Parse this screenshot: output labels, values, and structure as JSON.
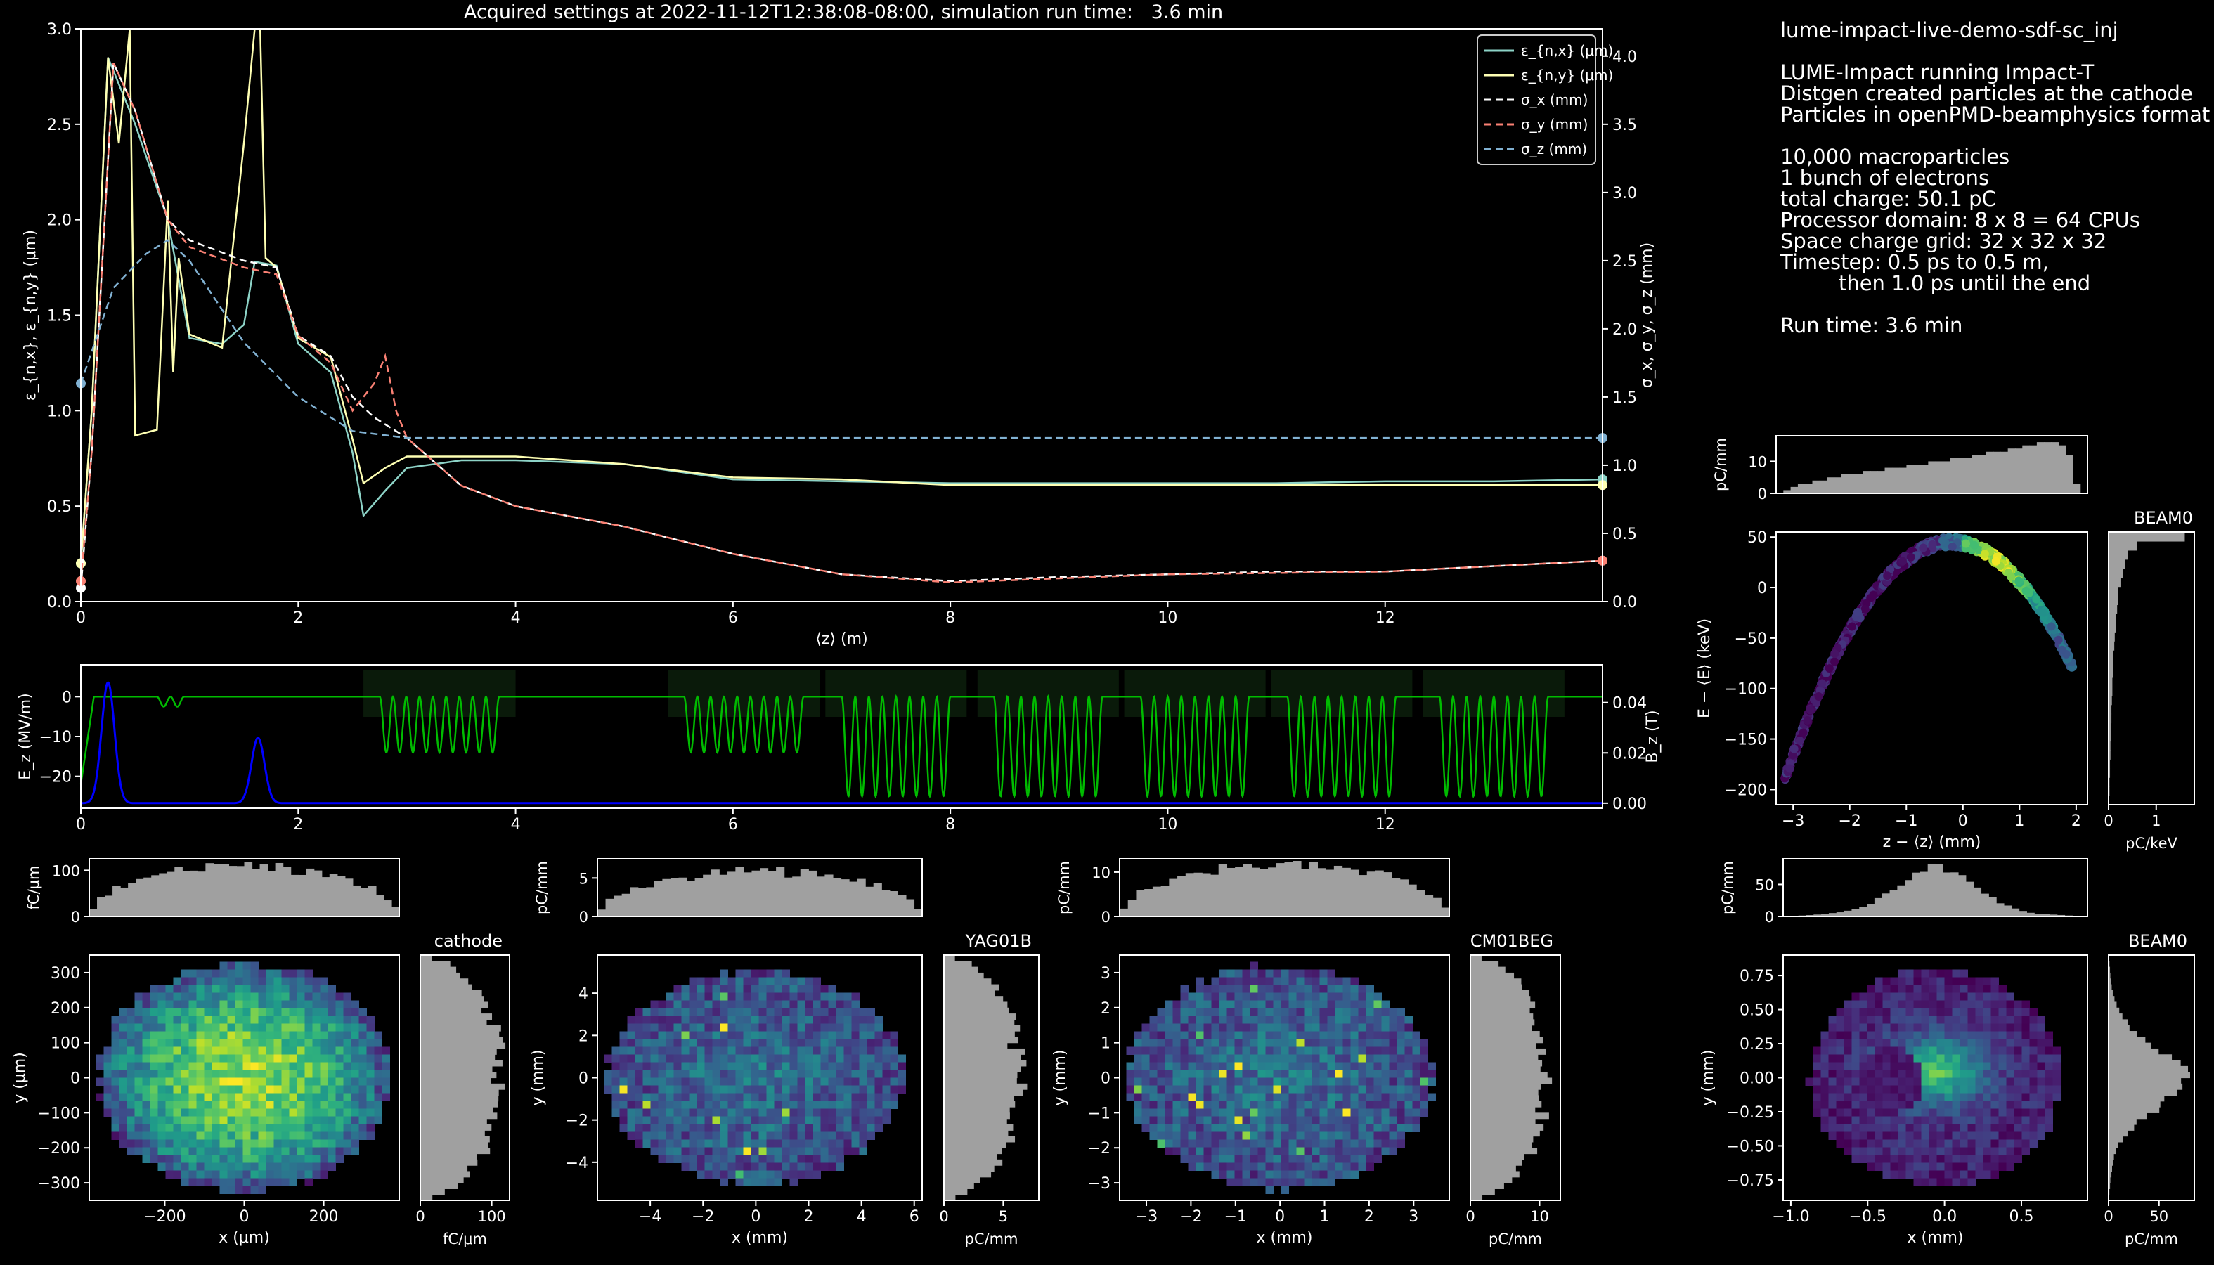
{
  "title": "Acquired settings at 2022-11-12T12:38:08-08:00, simulation run time:   3.6 min",
  "info": {
    "lines": [
      "lume-impact-live-demo-sdf-sc_inj",
      "",
      "LUME-Impact running Impact-T",
      "Distgen created particles at the cathode",
      "Particles in openPMD-beamphysics format",
      "",
      "10,000 macroparticles",
      "1 bunch of electrons",
      "total charge: 50.1 pC",
      "Processor domain: 8 x 8 = 64 CPUs",
      "Space charge grid: 32 x 32 x 32",
      "Timestep: 0.5 ps to 0.5 m,",
      "         then 1.0 ps until the end",
      "",
      "Run time: 3.6 min"
    ]
  },
  "colors": {
    "background": "#000000",
    "enx": "#8dd3c7",
    "eny": "#feffb3",
    "sigx": "#ffffff",
    "sigy": "#fa8174",
    "sigz": "#81b1d2",
    "ez": "#0000ff",
    "bz": "#00bb00",
    "hist": "#a0a0a0"
  },
  "chart_data": [
    {
      "id": "emittance",
      "type": "line",
      "xlabel": "⟨z⟩ (m)",
      "ylabel": "ε_{n,x}, ε_{n,y} (μm)",
      "ylabel2": "σ_x, σ_y, σ_z (mm)",
      "xlim": [
        0,
        14
      ],
      "ylim": [
        0,
        3
      ],
      "ylim2": [
        0,
        4.2
      ],
      "xticks": [
        "0",
        "2",
        "4",
        "6",
        "8",
        "10",
        "12"
      ],
      "yticks": [
        "0.0",
        "0.5",
        "1.0",
        "1.5",
        "2.0",
        "2.5",
        "3.0"
      ],
      "yticks2": [
        "0.0",
        "0.5",
        "1.0",
        "1.5",
        "2.0",
        "2.5",
        "3.0",
        "3.5",
        "4.0"
      ],
      "legend_position": "top-right",
      "series": [
        {
          "name": "ε_{n,x} (μm)",
          "axis": "left",
          "x": [
            0,
            0.1,
            0.25,
            0.5,
            0.8,
            1.0,
            1.3,
            1.5,
            1.6,
            1.8,
            2.0,
            2.3,
            2.5,
            2.6,
            2.8,
            3.0,
            3.5,
            4.0,
            5.0,
            6.0,
            7.0,
            8.0,
            9.0,
            10.0,
            11.0,
            12.0,
            13.0,
            14.0
          ],
          "y": [
            0.2,
            1.0,
            2.85,
            2.5,
            2.0,
            1.38,
            1.35,
            1.45,
            1.78,
            1.76,
            1.35,
            1.2,
            0.78,
            0.45,
            0.58,
            0.7,
            0.74,
            0.74,
            0.72,
            0.64,
            0.63,
            0.62,
            0.62,
            0.62,
            0.62,
            0.63,
            0.63,
            0.64
          ]
        },
        {
          "name": "ε_{n,y} (μm)",
          "axis": "left",
          "x": [
            0,
            0.1,
            0.25,
            0.35,
            0.45,
            0.5,
            0.7,
            0.8,
            0.85,
            0.9,
            1.0,
            1.3,
            1.5,
            1.6,
            1.65,
            1.7,
            1.8,
            2.0,
            2.3,
            2.5,
            2.6,
            2.8,
            3.0,
            3.5,
            4.0,
            5.0,
            6.0,
            7.0,
            8.0,
            9.0,
            10.0,
            11.0,
            12.0,
            13.0,
            14.0
          ],
          "y": [
            0.2,
            1.0,
            2.85,
            2.4,
            3.0,
            0.87,
            0.9,
            2.1,
            1.2,
            1.8,
            1.4,
            1.33,
            2.4,
            3.0,
            3.0,
            1.8,
            1.75,
            1.38,
            1.28,
            0.85,
            0.62,
            0.7,
            0.76,
            0.76,
            0.76,
            0.72,
            0.65,
            0.64,
            0.61,
            0.61,
            0.61,
            0.61,
            0.61,
            0.61,
            0.61
          ]
        },
        {
          "name": "σ_x (mm)",
          "axis": "right",
          "dashed": true,
          "x": [
            0,
            0.1,
            0.3,
            0.5,
            0.8,
            1.0,
            1.5,
            1.8,
            2.0,
            2.3,
            2.5,
            2.7,
            3.0,
            3.5,
            4.0,
            5.0,
            6.0,
            7.0,
            8.0,
            9.0,
            10.0,
            11.0,
            12.0,
            13.0,
            14.0
          ],
          "y": [
            0.1,
            1.1,
            3.95,
            3.6,
            2.8,
            2.65,
            2.5,
            2.45,
            1.95,
            1.8,
            1.5,
            1.35,
            1.2,
            0.85,
            0.7,
            0.55,
            0.35,
            0.2,
            0.15,
            0.18,
            0.2,
            0.22,
            0.22,
            0.26,
            0.3
          ]
        },
        {
          "name": "σ_y (mm)",
          "axis": "right",
          "dashed": true,
          "x": [
            0,
            0.1,
            0.3,
            0.5,
            0.8,
            1.0,
            1.5,
            1.8,
            2.0,
            2.3,
            2.5,
            2.7,
            2.8,
            2.9,
            3.0,
            3.5,
            4.0,
            5.0,
            6.0,
            7.0,
            8.0,
            9.0,
            10.0,
            11.0,
            12.0,
            13.0,
            14.0
          ],
          "y": [
            0.15,
            1.1,
            3.95,
            3.6,
            2.8,
            2.6,
            2.45,
            2.4,
            1.95,
            1.75,
            1.4,
            1.6,
            1.8,
            1.4,
            1.2,
            0.85,
            0.7,
            0.55,
            0.35,
            0.2,
            0.14,
            0.17,
            0.2,
            0.21,
            0.22,
            0.26,
            0.3
          ]
        },
        {
          "name": "σ_z (mm)",
          "axis": "right",
          "dashed": true,
          "x": [
            0,
            0.3,
            0.6,
            0.8,
            1.0,
            1.5,
            2.0,
            2.5,
            3.0,
            4.0,
            6.0,
            8.0,
            10.0,
            12.0,
            14.0
          ],
          "y": [
            1.6,
            2.3,
            2.55,
            2.65,
            2.5,
            1.9,
            1.5,
            1.25,
            1.2,
            1.2,
            1.2,
            1.2,
            1.2,
            1.2,
            1.2
          ]
        }
      ]
    },
    {
      "id": "fields",
      "type": "line",
      "ylabel": "E_z (MV/m)",
      "ylabel2": "B_z (T)",
      "xlim": [
        0,
        14
      ],
      "ylim": [
        -28,
        8
      ],
      "ylim2": [
        -0.002,
        0.055
      ],
      "xticks": [
        "0",
        "2",
        "4",
        "6",
        "8",
        "10",
        "12"
      ],
      "yticks": [
        "0",
        "−10",
        "−20"
      ],
      "yticks2": [
        "0.00",
        "0.02",
        "0.04"
      ],
      "ez_cavities": [
        {
          "start": 2.75,
          "end": 3.85,
          "amplitude": 14,
          "periods": 9
        },
        {
          "start": 5.55,
          "end": 6.65,
          "amplitude": 14,
          "periods": 9
        },
        {
          "start": 7.0,
          "end": 8.0,
          "amplitude": 25,
          "periods": 8
        },
        {
          "start": 8.4,
          "end": 9.4,
          "amplitude": 25,
          "periods": 8
        },
        {
          "start": 9.75,
          "end": 10.75,
          "amplitude": 25,
          "periods": 8
        },
        {
          "start": 11.1,
          "end": 12.1,
          "amplitude": 25,
          "periods": 8
        },
        {
          "start": 12.5,
          "end": 13.5,
          "amplitude": 25,
          "periods": 8
        }
      ],
      "bz_peaks": [
        {
          "center": 0.25,
          "height": 0.048,
          "width": 0.06
        },
        {
          "center": 1.63,
          "height": 0.026,
          "width": 0.06
        }
      ]
    },
    {
      "id": "longitudinal",
      "type": "scatter",
      "title": "BEAM0",
      "xlabel": "z − ⟨z⟩ (mm)",
      "ylabel": "E − ⟨E⟩ (keV)",
      "xlim": [
        -3.3,
        2.2
      ],
      "ylim": [
        -215,
        55
      ],
      "xticks": [
        "−3",
        "−2",
        "−1",
        "0",
        "1",
        "2"
      ],
      "yticks": [
        "50",
        "0",
        "−50",
        "−100",
        "−150",
        "−200"
      ],
      "curve": {
        "peak_z": -0.2,
        "peak_E": 45,
        "curvature": 27
      },
      "top_hist": {
        "ylabel": "pC/mm",
        "yticks": [
          "0",
          "10"
        ],
        "ymax": 18,
        "values": [
          0,
          1,
          2,
          3,
          3,
          4,
          4,
          5,
          5,
          6,
          6,
          6,
          7,
          7,
          7,
          8,
          8,
          8,
          9,
          9,
          9,
          10,
          10,
          10,
          11,
          11,
          11,
          12,
          12,
          13,
          13,
          13,
          14,
          14,
          15,
          15,
          16,
          16,
          16,
          15,
          12,
          3,
          0
        ]
      },
      "side_hist": {
        "xlabel": "pC/keV",
        "xticks": [
          "0",
          "1"
        ],
        "xmax": 1.8,
        "values": [
          1.6,
          0.6,
          0.4,
          0.35,
          0.3,
          0.25,
          0.2,
          0.2,
          0.18,
          0.15,
          0.15,
          0.13,
          0.12,
          0.1,
          0.1,
          0.1,
          0.08,
          0.08,
          0.07,
          0.06,
          0.06,
          0.05,
          0.05,
          0.04,
          0.04,
          0.03,
          0.03,
          0.02,
          0.02,
          0.01
        ]
      }
    },
    {
      "id": "cathode",
      "type": "heatmap",
      "title": "cathode",
      "xlabel": "x (μm)",
      "ylabel": "y (μm)",
      "xlim": [
        -390,
        390
      ],
      "ylim": [
        -350,
        350
      ],
      "xticks": [
        "−200",
        "0",
        "200"
      ],
      "xtick_values": [
        -200,
        0,
        200
      ],
      "yticks": [
        "300",
        "200",
        "100",
        "0",
        "−100",
        "−200",
        "−300"
      ],
      "ytick_values": [
        300,
        200,
        100,
        0,
        -100,
        -200,
        -300
      ],
      "beam": {
        "cx": 0,
        "cy": 0,
        "rx": 360,
        "ry": 320,
        "style": "flat-bright"
      },
      "top_hist": {
        "ylabel": "fC/μm",
        "yticks": [
          "0",
          "100"
        ],
        "ymax": 125,
        "shape": "dome",
        "peak": 108
      },
      "side_hist": {
        "xlabel": "fC/μm",
        "xticks": [
          "0",
          "100"
        ],
        "xmax": 125,
        "shape": "dome",
        "peak": 112
      }
    },
    {
      "id": "yag01b",
      "type": "heatmap",
      "title": "YAG01B",
      "xlabel": "x (mm)",
      "ylabel": "y (mm)",
      "xlim": [
        -6,
        6.3
      ],
      "ylim": [
        -5.8,
        5.8
      ],
      "xticks": [
        "−4",
        "−2",
        "0",
        "2",
        "4",
        "6"
      ],
      "xtick_values": [
        -4,
        -2,
        0,
        2,
        4,
        6
      ],
      "yticks": [
        "4",
        "2",
        "0",
        "−2",
        "−4"
      ],
      "ytick_values": [
        4,
        2,
        0,
        -2,
        -4
      ],
      "beam": {
        "cx": 0,
        "cy": 0,
        "rx": 5.5,
        "ry": 4.9,
        "style": "uniform-noisy"
      },
      "top_hist": {
        "ylabel": "pC/mm",
        "yticks": [
          "0",
          "5"
        ],
        "ymax": 7.5,
        "shape": "dome",
        "peak": 5.8
      },
      "side_hist": {
        "xlabel": "pC/mm",
        "xticks": [
          "0",
          "5"
        ],
        "xmax": 8,
        "shape": "dome",
        "peak": 6.3
      }
    },
    {
      "id": "cm01beg",
      "type": "heatmap",
      "title": "CM01BEG",
      "xlabel": "x (mm)",
      "ylabel": "y (mm)",
      "xlim": [
        -3.6,
        3.8
      ],
      "ylim": [
        -3.5,
        3.5
      ],
      "xticks": [
        "−3",
        "−2",
        "−1",
        "0",
        "1",
        "2",
        "3"
      ],
      "xtick_values": [
        -3,
        -2,
        -1,
        0,
        1,
        2,
        3
      ],
      "yticks": [
        "3",
        "2",
        "1",
        "0",
        "−1",
        "−2",
        "−3"
      ],
      "ytick_values": [
        3,
        2,
        1,
        0,
        -1,
        -2,
        -3
      ],
      "beam": {
        "cx": 0,
        "cy": 0,
        "rx": 3.35,
        "ry": 3.1,
        "style": "uniform-noisy"
      },
      "top_hist": {
        "ylabel": "pC/mm",
        "yticks": [
          "0",
          "10"
        ],
        "ymax": 13,
        "shape": "dome",
        "peak": 11.5
      },
      "side_hist": {
        "xlabel": "pC/mm",
        "xticks": [
          "0",
          "10"
        ],
        "xmax": 13,
        "shape": "dome",
        "peak": 11
      }
    },
    {
      "id": "beam0",
      "type": "heatmap",
      "title": "BEAM0",
      "xlabel": "x (mm)",
      "ylabel": "y (mm)",
      "xlim": [
        -1.05,
        0.93
      ],
      "ylim": [
        -0.9,
        0.9
      ],
      "xticks": [
        "−1.0",
        "−0.5",
        "0.0",
        "0.5"
      ],
      "xtick_values": [
        -1,
        -0.5,
        0,
        0.5
      ],
      "yticks": [
        "0.75",
        "0.50",
        "0.25",
        "0.00",
        "−0.25",
        "−0.50",
        "−0.75"
      ],
      "ytick_values": [
        0.75,
        0.5,
        0.25,
        0,
        -0.25,
        -0.5,
        -0.75
      ],
      "beam": {
        "cx": -0.05,
        "cy": 0.0,
        "rx": 0.8,
        "ry": 0.78,
        "style": "core"
      },
      "top_hist": {
        "ylabel": "pC/mm",
        "yticks": [
          "0",
          "50"
        ],
        "ymax": 90,
        "shape": "peaked",
        "peak": 72
      },
      "side_hist": {
        "xlabel": "pC/mm",
        "xticks": [
          "0",
          "50"
        ],
        "xmax": 85,
        "shape": "peaked",
        "peak": 72
      }
    }
  ]
}
